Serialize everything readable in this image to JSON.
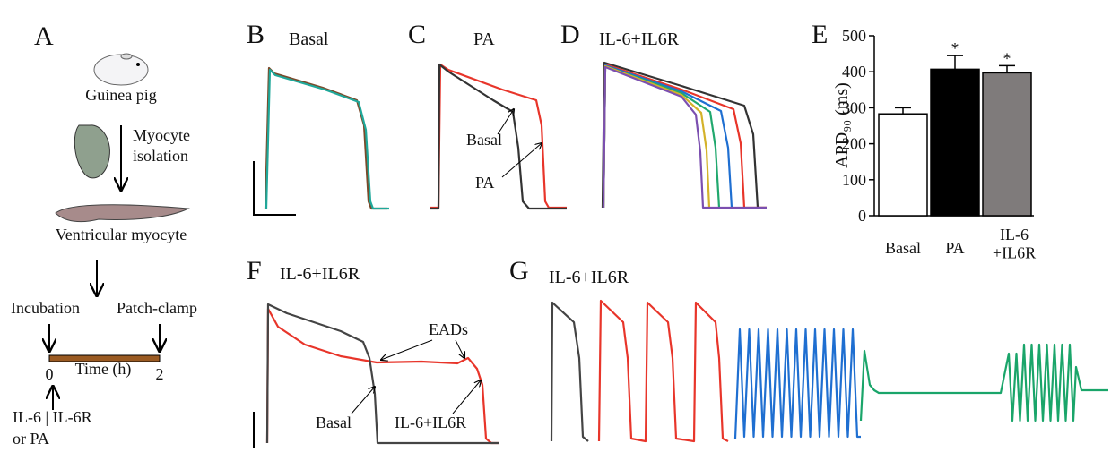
{
  "panel_a": {
    "label": "A",
    "animal": "Guinea pig",
    "step": "Myocyte",
    "step_2": "isolation",
    "cell": "Ventricular myocyte",
    "incubation": "Incubation",
    "patch_clamp": "Patch-clamp",
    "time_label": "Time (h)",
    "time_start": 0,
    "time_end": 2,
    "treatment": "IL-6 | IL-6R",
    "treatment_2": "or PA"
  },
  "panel_b": {
    "label": "B",
    "title": "Basal"
  },
  "panel_c": {
    "label": "C",
    "title": "PA",
    "annotations": [
      "Basal",
      "PA"
    ]
  },
  "panel_d": {
    "label": "D",
    "title": "IL-6+IL6R"
  },
  "panel_f": {
    "label": "F",
    "title": "IL-6+IL6R",
    "annotations": [
      "EADs",
      "Basal",
      "IL-6+IL6R"
    ]
  },
  "panel_g": {
    "label": "G",
    "title": "IL-6+IL6R"
  },
  "chart_data": {
    "type": "bar",
    "panel_label": "E",
    "y_label": "APD₉₀ (ms)",
    "categories": [
      "Basal",
      "PA",
      "IL-6\n+IL6R"
    ],
    "values": [
      283,
      407,
      397
    ],
    "errors": [
      17,
      38,
      20
    ],
    "significance": [
      null,
      "*",
      "*"
    ],
    "colors": [
      "#ffffff",
      "#000000",
      "#7f7b7b"
    ],
    "ylim": [
      0,
      500
    ],
    "yticks": [
      0,
      100,
      200,
      300,
      400,
      500
    ]
  }
}
